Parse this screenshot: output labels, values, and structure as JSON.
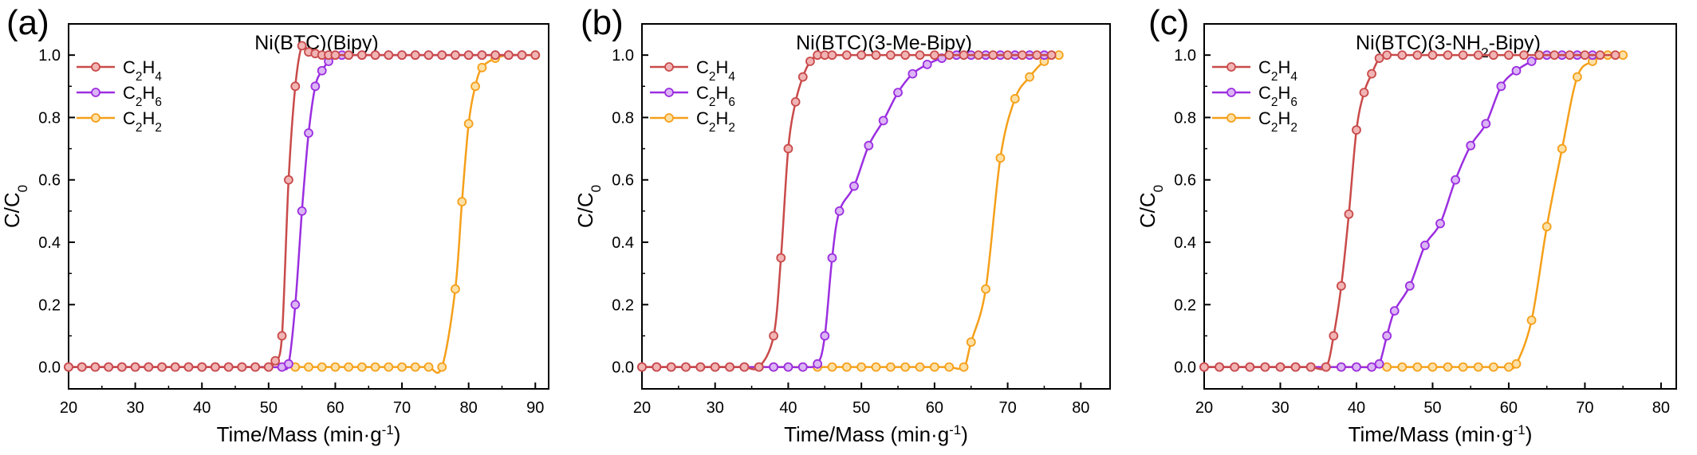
{
  "colors": {
    "C2H4": "#c94a4a",
    "C2H6": "#9b2ee0",
    "C2H2": "#f5a01a",
    "marker_fill_C2H4": "#f1b4b4",
    "marker_fill_C2H6": "#dcb5f5",
    "marker_fill_C2H2": "#fde0a6"
  },
  "chart_data": [
    {
      "type": "line",
      "panel_label": "(a)",
      "title": "Ni(BTC)(Bipy)",
      "title_parts": [
        {
          "t": "Ni(BTC)(Bipy)",
          "sub": false
        }
      ],
      "xlabel": "Time/Mass (min·g",
      "xlabel_sup": "-1",
      "xlabel_end": ")",
      "ylabel": "C/C",
      "ylabel_sub": "0",
      "xlim": [
        20,
        92
      ],
      "ylim": [
        -0.07,
        1.1
      ],
      "xticks": [
        20,
        30,
        40,
        50,
        60,
        70,
        80,
        90
      ],
      "yticks": [
        0.0,
        0.2,
        0.4,
        0.6,
        0.8,
        1.0
      ],
      "ytick_labels": [
        "0.0",
        "0.2",
        "0.4",
        "0.6",
        "0.8",
        "1.0"
      ],
      "grid": false,
      "legend_position": "top-left",
      "series": [
        {
          "name": "C2H4",
          "label_parts": [
            {
              "t": "C",
              "sub": false
            },
            {
              "t": "2",
              "sub": true
            },
            {
              "t": "H",
              "sub": false
            },
            {
              "t": "4",
              "sub": true
            }
          ],
          "x": [
            20,
            22,
            24,
            26,
            28,
            30,
            32,
            34,
            36,
            38,
            40,
            42,
            44,
            46,
            48,
            50,
            51,
            52,
            53,
            54,
            55,
            56,
            57,
            58,
            59,
            60,
            62,
            64,
            66,
            68,
            70,
            72,
            74,
            76,
            78,
            80,
            82,
            84,
            86,
            88,
            90
          ],
          "y": [
            0,
            0,
            0,
            0,
            0,
            0,
            0,
            0,
            0,
            0,
            0,
            0,
            0,
            0,
            0,
            0,
            0.02,
            0.1,
            0.6,
            0.9,
            1.03,
            1.01,
            1.005,
            1.0,
            1.0,
            1.0,
            1.0,
            1.0,
            1.0,
            1.0,
            1.0,
            1.0,
            1.0,
            1.0,
            1.0,
            1.0,
            1.0,
            1.0,
            1.0,
            1.0,
            1.0
          ]
        },
        {
          "name": "C2H6",
          "label_parts": [
            {
              "t": "C",
              "sub": false
            },
            {
              "t": "2",
              "sub": true
            },
            {
              "t": "H",
              "sub": false
            },
            {
              "t": "6",
              "sub": true
            }
          ],
          "x": [
            20,
            22,
            24,
            26,
            28,
            30,
            32,
            34,
            36,
            38,
            40,
            42,
            44,
            46,
            48,
            50,
            52,
            53,
            54,
            55,
            56,
            57,
            58,
            59,
            60,
            61,
            62,
            64,
            66,
            68,
            70,
            72,
            74,
            76,
            78,
            80,
            82,
            84,
            86,
            88
          ],
          "y": [
            0,
            0,
            0,
            0,
            0,
            0,
            0,
            0,
            0,
            0,
            0,
            0,
            0,
            0,
            0,
            0,
            0,
            0.01,
            0.2,
            0.5,
            0.75,
            0.9,
            0.95,
            0.98,
            1.0,
            1.0,
            1.0,
            1.0,
            1.0,
            1.0,
            1.0,
            1.0,
            1.0,
            1.0,
            1.0,
            1.0,
            1.0,
            1.0,
            1.0,
            1.0
          ]
        },
        {
          "name": "C2H2",
          "label_parts": [
            {
              "t": "C",
              "sub": false
            },
            {
              "t": "2",
              "sub": true
            },
            {
              "t": "H",
              "sub": false
            },
            {
              "t": "2",
              "sub": true
            }
          ],
          "x": [
            20,
            22,
            24,
            26,
            28,
            30,
            32,
            34,
            36,
            38,
            40,
            42,
            44,
            46,
            48,
            50,
            52,
            54,
            56,
            58,
            60,
            62,
            64,
            66,
            68,
            70,
            72,
            74,
            76,
            78,
            79,
            80,
            81,
            82,
            84,
            86,
            88,
            90
          ],
          "y": [
            0,
            0,
            0,
            0,
            0,
            0,
            0,
            0,
            0,
            0,
            0,
            0,
            0,
            0,
            0,
            0,
            0,
            0,
            0,
            0,
            0,
            0,
            0,
            0,
            0,
            0,
            0,
            0,
            0,
            0.25,
            0.53,
            0.78,
            0.9,
            0.96,
            0.99,
            1.0,
            1.0,
            1.0
          ]
        }
      ]
    },
    {
      "type": "line",
      "panel_label": "(b)",
      "title": "Ni(BTC)(3-Me-Bipy)",
      "title_parts": [
        {
          "t": "Ni(BTC)(3-Me-Bipy)",
          "sub": false
        }
      ],
      "xlabel": "Time/Mass (min·g",
      "xlabel_sup": "-1",
      "xlabel_end": ")",
      "ylabel": "C/C",
      "ylabel_sub": "0",
      "xlim": [
        20,
        84
      ],
      "ylim": [
        -0.07,
        1.1
      ],
      "xticks": [
        20,
        30,
        40,
        50,
        60,
        70,
        80
      ],
      "yticks": [
        0.0,
        0.2,
        0.4,
        0.6,
        0.8,
        1.0
      ],
      "ytick_labels": [
        "0.0",
        "0.2",
        "0.4",
        "0.6",
        "0.8",
        "1.0"
      ],
      "grid": false,
      "legend_position": "top-left",
      "series": [
        {
          "name": "C2H4",
          "label_parts": [
            {
              "t": "C",
              "sub": false
            },
            {
              "t": "2",
              "sub": true
            },
            {
              "t": "H",
              "sub": false
            },
            {
              "t": "4",
              "sub": true
            }
          ],
          "x": [
            20,
            22,
            24,
            26,
            28,
            30,
            32,
            34,
            36,
            38,
            39,
            40,
            41,
            42,
            43,
            44,
            45,
            46,
            48,
            50,
            52,
            54,
            56,
            58,
            60,
            62,
            64,
            66,
            68,
            70,
            72,
            74,
            76
          ],
          "y": [
            0,
            0,
            0,
            0,
            0,
            0,
            0,
            0,
            0,
            0.1,
            0.35,
            0.7,
            0.85,
            0.93,
            0.98,
            1.0,
            1.0,
            1.0,
            1.0,
            1.0,
            1.0,
            1.0,
            1.0,
            1.0,
            1.0,
            1.0,
            1.0,
            1.0,
            1.0,
            1.0,
            1.0,
            1.0,
            1.0
          ]
        },
        {
          "name": "C2H6",
          "label_parts": [
            {
              "t": "C",
              "sub": false
            },
            {
              "t": "2",
              "sub": true
            },
            {
              "t": "H",
              "sub": false
            },
            {
              "t": "6",
              "sub": true
            }
          ],
          "x": [
            20,
            22,
            24,
            26,
            28,
            30,
            32,
            34,
            36,
            38,
            40,
            42,
            44,
            45,
            46,
            47,
            49,
            51,
            53,
            55,
            57,
            59,
            61,
            63,
            65,
            67,
            69,
            71,
            73,
            75
          ],
          "y": [
            0,
            0,
            0,
            0,
            0,
            0,
            0,
            0,
            0,
            0,
            0,
            0,
            0.01,
            0.1,
            0.35,
            0.5,
            0.58,
            0.71,
            0.79,
            0.88,
            0.94,
            0.97,
            0.99,
            1.0,
            1.0,
            1.0,
            1.0,
            1.0,
            1.0,
            1.0
          ]
        },
        {
          "name": "C2H2",
          "label_parts": [
            {
              "t": "C",
              "sub": false
            },
            {
              "t": "2",
              "sub": true
            },
            {
              "t": "H",
              "sub": false
            },
            {
              "t": "2",
              "sub": true
            }
          ],
          "x": [
            20,
            22,
            24,
            26,
            28,
            30,
            32,
            34,
            36,
            38,
            40,
            42,
            44,
            46,
            48,
            50,
            52,
            54,
            56,
            58,
            60,
            62,
            64,
            65,
            67,
            69,
            71,
            73,
            75,
            77
          ],
          "y": [
            0,
            0,
            0,
            0,
            0,
            0,
            0,
            0,
            0,
            0,
            0,
            0,
            0,
            0,
            0,
            0,
            0,
            0,
            0,
            0,
            0,
            0,
            0,
            0.08,
            0.25,
            0.67,
            0.86,
            0.93,
            0.98,
            1.0
          ]
        }
      ]
    },
    {
      "type": "line",
      "panel_label": "(c)",
      "title": "Ni(BTC)(3-NH2-Bipy)",
      "title_parts": [
        {
          "t": "Ni(BTC)(3-NH",
          "sub": false
        },
        {
          "t": "2",
          "sub": true
        },
        {
          "t": "-Bipy)",
          "sub": false
        }
      ],
      "xlabel": "Time/Mass (min·g",
      "xlabel_sup": "-1",
      "xlabel_end": ")",
      "ylabel": "C/C",
      "ylabel_sub": "0",
      "xlim": [
        20,
        82
      ],
      "ylim": [
        -0.07,
        1.1
      ],
      "xticks": [
        20,
        30,
        40,
        50,
        60,
        70,
        80
      ],
      "yticks": [
        0.0,
        0.2,
        0.4,
        0.6,
        0.8,
        1.0
      ],
      "ytick_labels": [
        "0.0",
        "0.2",
        "0.4",
        "0.6",
        "0.8",
        "1.0"
      ],
      "grid": false,
      "legend_position": "top-left",
      "series": [
        {
          "name": "C2H4",
          "label_parts": [
            {
              "t": "C",
              "sub": false
            },
            {
              "t": "2",
              "sub": true
            },
            {
              "t": "H",
              "sub": false
            },
            {
              "t": "4",
              "sub": true
            }
          ],
          "x": [
            20,
            22,
            24,
            26,
            28,
            30,
            32,
            34,
            36,
            37,
            38,
            39,
            40,
            41,
            42,
            43,
            44,
            46,
            48,
            50,
            52,
            54,
            56,
            58,
            60,
            62,
            64,
            66,
            68,
            70,
            72,
            74
          ],
          "y": [
            0,
            0,
            0,
            0,
            0,
            0,
            0,
            0,
            0,
            0.1,
            0.26,
            0.49,
            0.76,
            0.88,
            0.94,
            0.99,
            1.0,
            1.0,
            1.0,
            1.0,
            1.0,
            1.0,
            1.0,
            1.0,
            1.0,
            1.0,
            1.0,
            1.0,
            1.0,
            1.0,
            1.0,
            1.0
          ]
        },
        {
          "name": "C2H6",
          "label_parts": [
            {
              "t": "C",
              "sub": false
            },
            {
              "t": "2",
              "sub": true
            },
            {
              "t": "H",
              "sub": false
            },
            {
              "t": "6",
              "sub": true
            }
          ],
          "x": [
            20,
            22,
            24,
            26,
            28,
            30,
            32,
            34,
            36,
            38,
            40,
            42,
            43,
            44,
            45,
            47,
            49,
            51,
            53,
            55,
            57,
            59,
            61,
            63,
            65,
            67,
            69,
            71
          ],
          "y": [
            0,
            0,
            0,
            0,
            0,
            0,
            0,
            0,
            0,
            0,
            0,
            0,
            0.01,
            0.1,
            0.18,
            0.26,
            0.39,
            0.46,
            0.6,
            0.71,
            0.78,
            0.9,
            0.95,
            0.98,
            1.0,
            1.0,
            1.0,
            1.0
          ]
        },
        {
          "name": "C2H2",
          "label_parts": [
            {
              "t": "C",
              "sub": false
            },
            {
              "t": "2",
              "sub": true
            },
            {
              "t": "H",
              "sub": false
            },
            {
              "t": "2",
              "sub": true
            }
          ],
          "x": [
            20,
            22,
            24,
            26,
            28,
            30,
            32,
            34,
            36,
            38,
            40,
            42,
            44,
            46,
            48,
            50,
            52,
            54,
            56,
            58,
            60,
            61,
            63,
            65,
            67,
            69,
            71,
            73,
            75
          ],
          "y": [
            0,
            0,
            0,
            0,
            0,
            0,
            0,
            0,
            0,
            0,
            0,
            0,
            0,
            0,
            0,
            0,
            0,
            0,
            0,
            0,
            0,
            0.01,
            0.15,
            0.45,
            0.7,
            0.93,
            0.98,
            1.0,
            1.0
          ]
        }
      ]
    }
  ]
}
